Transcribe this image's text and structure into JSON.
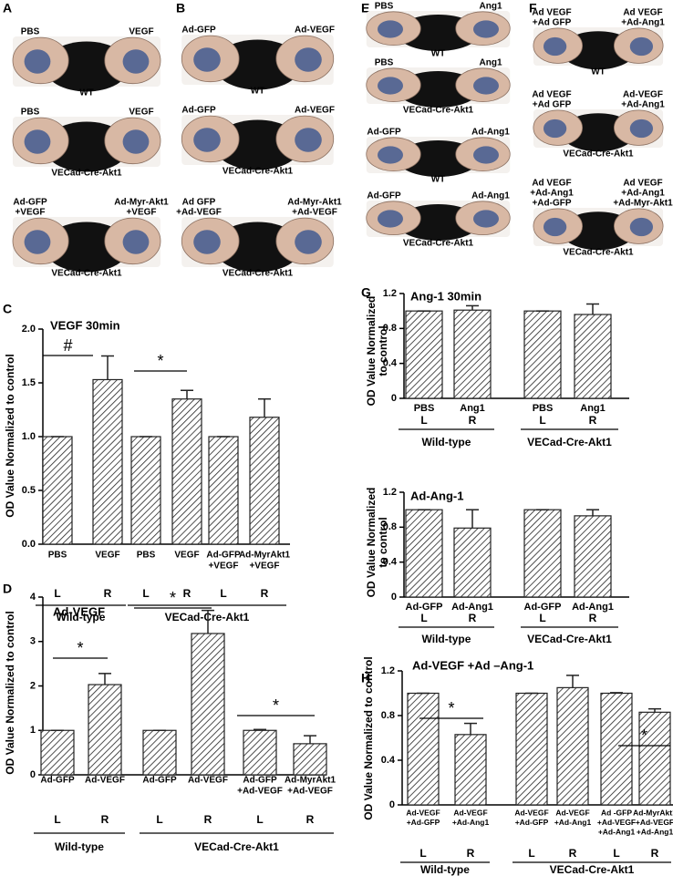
{
  "photo_panels": [
    {
      "panel": "A",
      "rows": [
        {
          "left": [
            "PBS"
          ],
          "right": [
            "VEGF"
          ],
          "caption": "WT"
        },
        {
          "left": [
            "PBS"
          ],
          "right": [
            "VEGF"
          ],
          "caption": "VECad-Cre-Akt1"
        },
        {
          "left": [
            "Ad-GFP",
            "+VEGF"
          ],
          "right": [
            "Ad-Myr-Akt1",
            "+VEGF"
          ],
          "caption": "VECad-Cre-Akt1"
        }
      ]
    },
    {
      "panel": "B",
      "rows": [
        {
          "left": [
            "Ad-GFP"
          ],
          "right": [
            "Ad-VEGF"
          ],
          "caption": "WT"
        },
        {
          "left": [
            "Ad-GFP"
          ],
          "right": [
            "Ad-VEGF"
          ],
          "caption": "VECad-Cre-Akt1"
        },
        {
          "left": [
            "Ad GFP",
            "+Ad-VEGF"
          ],
          "right": [
            "Ad-Myr-Akt1",
            "+Ad-VEGF"
          ],
          "caption": "VECad-Cre-Akt1"
        }
      ]
    },
    {
      "panel": "E",
      "rows": [
        {
          "left": [
            "PBS"
          ],
          "right": [
            "Ang1"
          ],
          "caption": "WT"
        },
        {
          "left": [
            "PBS"
          ],
          "right": [
            "Ang1"
          ],
          "caption": "VECad-Cre-Akt1"
        },
        {
          "left": [
            "Ad-GFP"
          ],
          "right": [
            "Ad-Ang1"
          ],
          "caption": "WT"
        },
        {
          "left": [
            "Ad-GFP"
          ],
          "right": [
            "Ad-Ang1"
          ],
          "caption": "VECad-Cre-Akt1"
        }
      ]
    },
    {
      "panel": "F",
      "rows": [
        {
          "left": [
            "Ad VEGF",
            "+Ad GFP"
          ],
          "right": [
            "Ad VEGF",
            "+Ad-Ang1"
          ],
          "caption": "WT"
        },
        {
          "left": [
            "Ad VEGF",
            "+Ad GFP"
          ],
          "right": [
            "Ad-VEGF",
            "+Ad-Ang1"
          ],
          "caption": "VECad-Cre-Akt1"
        },
        {
          "left": [
            "Ad VEGF",
            "+Ad-Ang1",
            "+Ad-GFP"
          ],
          "right": [
            "Ad VEGF",
            "+Ad-Ang1",
            "+Ad-Myr-Akt1"
          ],
          "caption": "VECad-Cre-Akt1"
        }
      ]
    }
  ],
  "chart_data": [
    {
      "type": "bar",
      "panel": "C",
      "title": "VEGF 30min",
      "ylabel": [
        "OD Value Normalized to control"
      ],
      "categories": [
        [
          "PBS"
        ],
        [
          "VEGF"
        ],
        [
          "PBS"
        ],
        [
          "VEGF"
        ],
        [
          "Ad-GFP",
          "+VEGF"
        ],
        [
          "Ad-MyrAkt1",
          "+VEGF"
        ]
      ],
      "sides": [
        "L",
        "R",
        "L",
        "R",
        "L",
        "R"
      ],
      "groups": [
        "Wild-type",
        "VECad-Cre-Akt1"
      ],
      "values": [
        1,
        1.53,
        1,
        1.35,
        1,
        1.18
      ],
      "errors": [
        0,
        0.22,
        0,
        0.08,
        0,
        0.17
      ],
      "annotations": [
        "#",
        "*"
      ],
      "color": "#222222",
      "hatch": true,
      "ylim": [
        0,
        2
      ],
      "yticks": [
        {
          "value": 0,
          "label": "0.0"
        },
        0.5,
        {
          "value": 1,
          "label": "1.0"
        },
        1.5,
        {
          "value": 2,
          "label": "2.0"
        }
      ]
    },
    {
      "type": "bar",
      "panel": "D",
      "title": "Ad-VEGF",
      "ylabel": [
        "OD Value Normalized to control"
      ],
      "categories": [
        [
          "Ad-GFP"
        ],
        [
          "Ad-VEGF"
        ],
        [
          "Ad-GFP"
        ],
        [
          "Ad-VEGF"
        ],
        [
          "Ad-GFP",
          "+Ad-VEGF"
        ],
        [
          "Ad-MyrAkt1",
          "+Ad-VEGF"
        ]
      ],
      "sides": [
        "L",
        "R",
        "L",
        "R",
        "L",
        "R"
      ],
      "groups": [
        "Wild-type",
        "VECad-Cre-Akt1"
      ],
      "values": [
        1,
        2.03,
        1,
        3.18,
        1,
        0.7
      ],
      "errors": [
        0,
        0.25,
        0,
        0.52,
        0.02,
        0.18
      ],
      "annotations": [
        "*",
        "*",
        "*"
      ],
      "color": "#222222",
      "hatch": true,
      "ylim": [
        0,
        4
      ],
      "yticks": [
        0,
        1,
        2,
        3,
        4
      ]
    },
    {
      "type": "bar",
      "panel": "G",
      "title": "Ang-1 30min",
      "ylabel": [
        "OD Value Normalized",
        "to control"
      ],
      "categories": [
        [
          "PBS"
        ],
        [
          "Ang1"
        ],
        [
          "PBS"
        ],
        [
          "Ang1"
        ]
      ],
      "sides": [
        "L",
        "R",
        "L",
        "R"
      ],
      "groups": [
        "Wild-type",
        "VECad-Cre-Akt1"
      ],
      "values": [
        1,
        1.01,
        1,
        0.96
      ],
      "errors": [
        0,
        0.05,
        0,
        0.12
      ],
      "annotations": [],
      "color": "#222222",
      "hatch": true,
      "ylim": [
        0,
        1.2
      ],
      "yticks": [
        0,
        0.4,
        0.8,
        1.2
      ]
    },
    {
      "type": "bar",
      "title": "Ad-Ang-1",
      "ylabel": [
        "OD Value Normalized",
        "to control"
      ],
      "categories": [
        [
          "Ad-GFP"
        ],
        [
          "Ad-Ang1"
        ],
        [
          "Ad-GFP"
        ],
        [
          "Ad-Ang1"
        ]
      ],
      "sides": [
        "L",
        "R",
        "L",
        "R"
      ],
      "groups": [
        "Wild-type",
        "VECad-Cre-Akt1"
      ],
      "values": [
        1,
        0.79,
        1,
        0.93
      ],
      "errors": [
        0,
        0.21,
        0,
        0.07
      ],
      "annotations": [],
      "color": "#222222",
      "hatch": true,
      "ylim": [
        0,
        1.2
      ],
      "yticks": [
        0,
        0.4,
        0.8,
        1.2
      ]
    },
    {
      "type": "bar",
      "panel": "H",
      "title": "Ad-VEGF +Ad –Ang-1",
      "ylabel": [
        "OD Value Normalized to control"
      ],
      "categories": [
        [
          "Ad-VEGF",
          "+Ad-GFP"
        ],
        [
          "Ad-VEGF",
          "+Ad-Ang1"
        ],
        [
          "Ad-VEGF",
          "+Ad-GFP"
        ],
        [
          "Ad-VEGF",
          "+Ad-Ang1"
        ],
        [
          "Ad -GFP",
          "+Ad-VEGF",
          "+Ad-Ang1"
        ],
        [
          "Ad-MyrAkt1",
          "+Ad-VEGF",
          "+Ad-Ang1"
        ]
      ],
      "sides": [
        "L",
        "R",
        "L",
        "R",
        "L",
        "R"
      ],
      "groups": [
        "Wild-type",
        "VECad-Cre-Akt1"
      ],
      "values": [
        1,
        0.63,
        1,
        1.05,
        1,
        0.83
      ],
      "errors": [
        0,
        0.1,
        0,
        0.11,
        0.005,
        0.03
      ],
      "annotations": [
        "*",
        "*"
      ],
      "color": "#222222",
      "hatch": true,
      "ylim": [
        0,
        1.2
      ],
      "yticks": [
        0,
        0.4,
        0.8,
        1.2
      ]
    }
  ]
}
